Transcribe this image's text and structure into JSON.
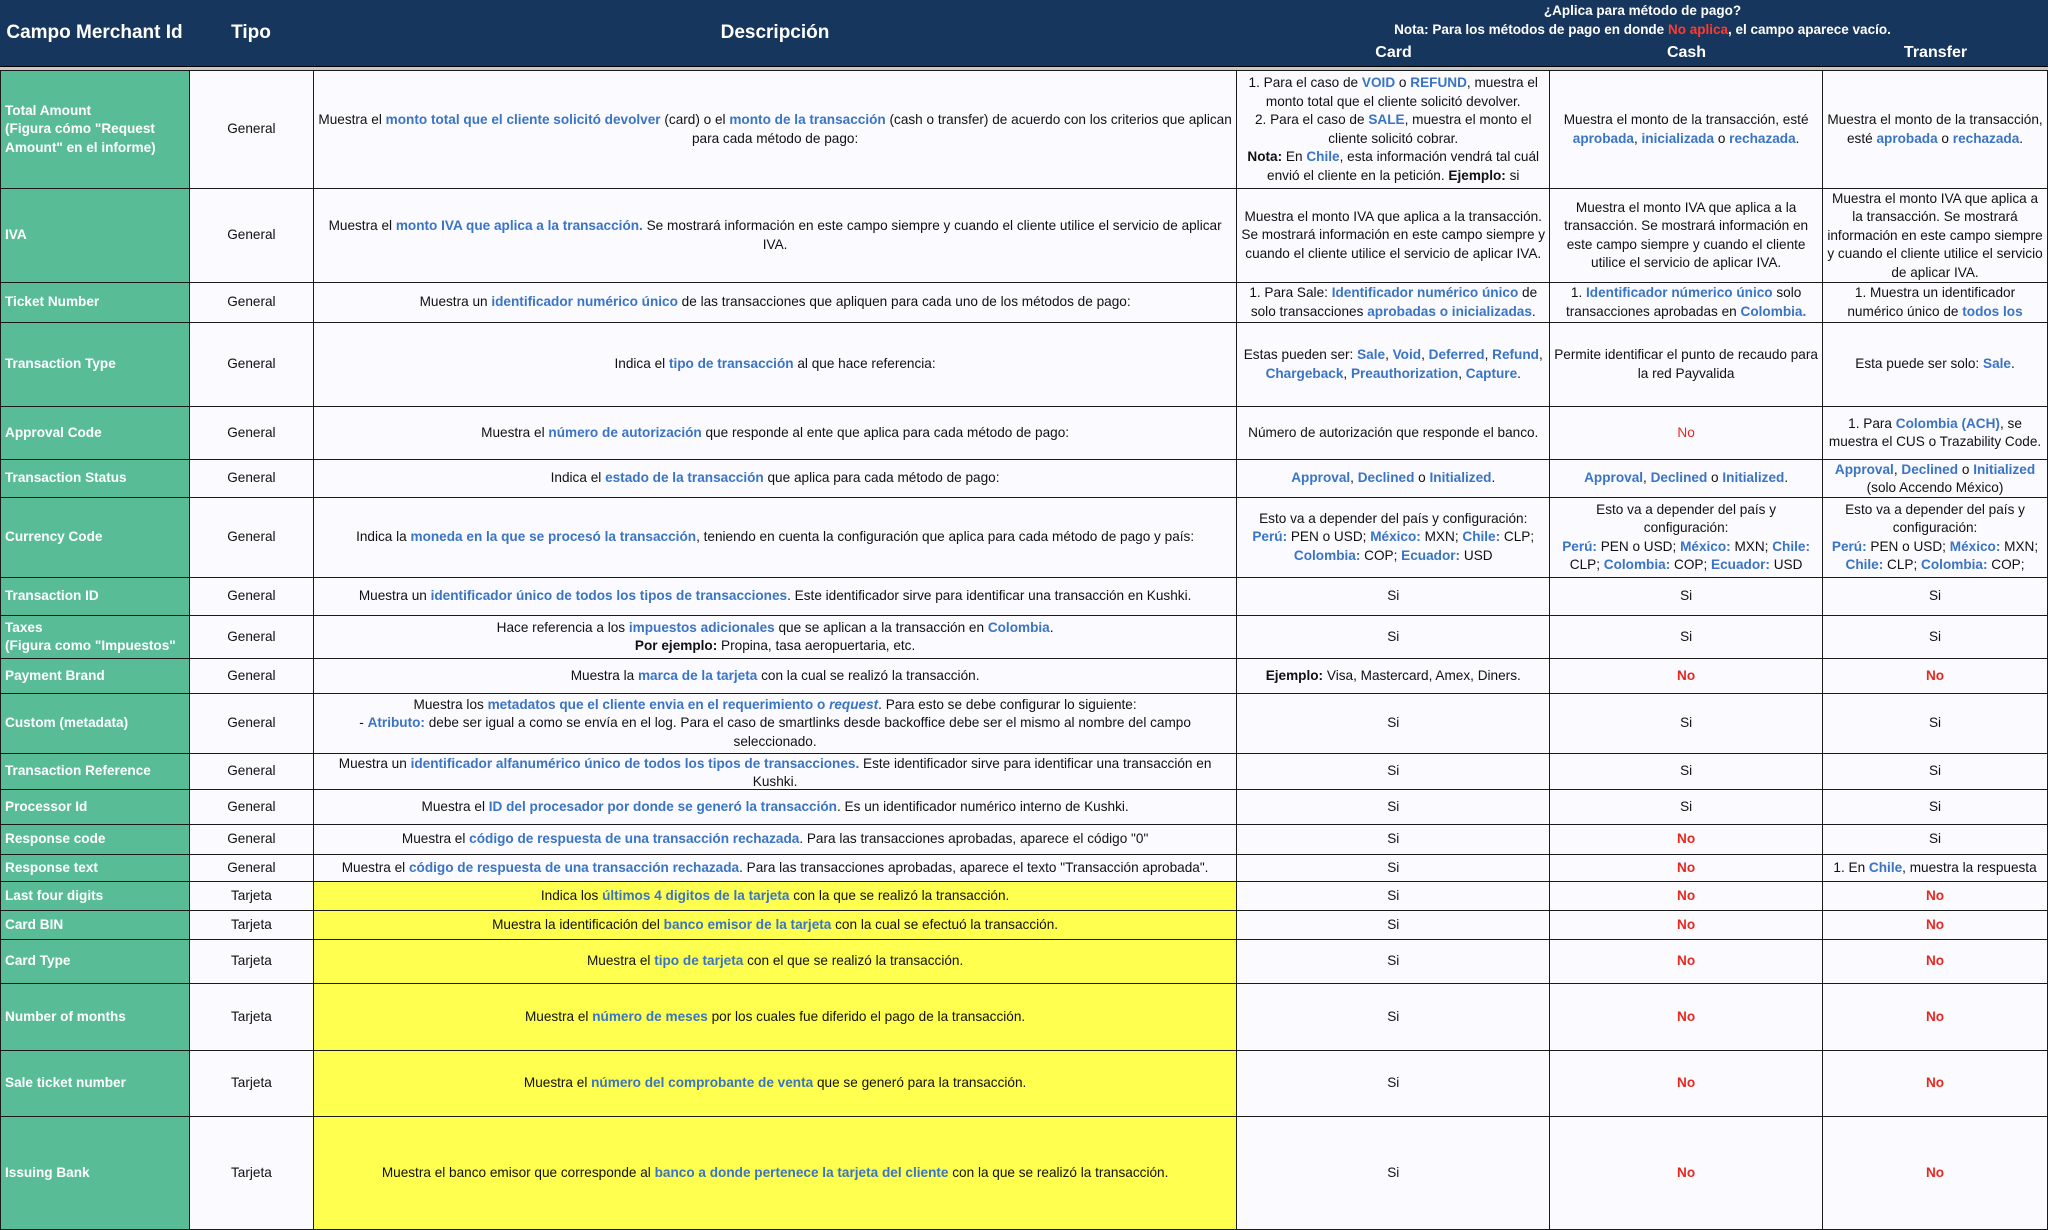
{
  "header": {
    "col_field": "Campo Merchant Id",
    "col_type": "Tipo",
    "col_desc": "Descripción",
    "applies_title": "¿Aplica para método de pago?",
    "note_pre": "Nota: Para los métodos de pago en donde ",
    "note_red": "No aplica",
    "note_post": ", el campo aparece vacío.",
    "card": "Card",
    "cash": "Cash",
    "transfer": "Transfer"
  },
  "colors": {
    "header_bg": "#17365d",
    "field_bg": "#58bd96",
    "highlight_bg": "#ffff4f",
    "link_blue": "#3a74c4",
    "no_red": "#e8281e"
  },
  "rows": [
    {
      "name": "Total Amount\n(Figura cómo \"Request Amount\" en el informe)",
      "type": "General",
      "desc": [
        [
          "Muestra el "
        ],
        [
          "monto total que el cliente solicitó devolver",
          "b"
        ],
        [
          " (card) o el "
        ],
        [
          "monto de la transacción",
          "b"
        ],
        [
          " (cash o transfer) de acuerdo con los criterios que aplican para cada método de pago:"
        ]
      ],
      "card": [
        [
          "1. Para el caso de "
        ],
        [
          "VOID",
          "b"
        ],
        [
          " o "
        ],
        [
          "REFUND",
          "b"
        ],
        [
          ", muestra el monto total que el cliente solicitó devolver.\n2. Para el caso de "
        ],
        [
          "SALE",
          "b"
        ],
        [
          ", muestra el monto el cliente solicitó cobrar.\n"
        ],
        [
          "Nota:",
          "k"
        ],
        [
          " En "
        ],
        [
          "Chile",
          "b"
        ],
        [
          ", esta información vendrá tal cuál envió el cliente en la petición. "
        ],
        [
          "Ejemplo:",
          "k"
        ],
        [
          " si"
        ]
      ],
      "cash": [
        [
          "Muestra el monto de la transacción, esté "
        ],
        [
          "aprobada",
          "b"
        ],
        [
          ", "
        ],
        [
          "inicializada",
          "b"
        ],
        [
          " o "
        ],
        [
          "rechazada",
          "b"
        ],
        [
          "."
        ]
      ],
      "transfer": [
        [
          "Muestra el monto de la transacción, esté "
        ],
        [
          "aprobada",
          "b"
        ],
        [
          " o "
        ],
        [
          "rechazada",
          "b"
        ],
        [
          "."
        ]
      ]
    },
    {
      "name": "IVA",
      "type": "General",
      "desc": [
        [
          "Muestra el "
        ],
        [
          "monto IVA que aplica a la transacción.",
          "b"
        ],
        [
          " Se mostrará información en este campo siempre y cuando el cliente utilice el servicio de aplicar IVA."
        ]
      ],
      "card": [
        [
          "Muestra el monto IVA que aplica a la transacción. Se mostrará información en este campo siempre y cuando el cliente utilice el servicio de aplicar IVA."
        ]
      ],
      "cash": [
        [
          "Muestra el monto IVA que aplica a la transacción. Se mostrará información en este campo siempre y cuando el cliente utilice el servicio de aplicar IVA."
        ]
      ],
      "transfer": [
        [
          "Muestra el monto IVA que aplica a la transacción. Se mostrará información en este campo siempre y cuando el cliente utilice el servicio de aplicar IVA."
        ]
      ]
    },
    {
      "name": "Ticket Number",
      "type": "General",
      "desc": [
        [
          "Muestra un "
        ],
        [
          "identificador numérico único",
          "b"
        ],
        [
          " de las transacciones que apliquen para cada uno de los métodos de pago:"
        ]
      ],
      "card": [
        [
          "1. Para Sale: "
        ],
        [
          "Identificador numérico único",
          "b"
        ],
        [
          " de solo transacciones "
        ],
        [
          "aprobadas o inicializadas",
          "b"
        ],
        [
          "."
        ]
      ],
      "cash": [
        [
          "1.  "
        ],
        [
          "Identificador númerico único",
          "b"
        ],
        [
          " solo transacciones aprobadas en "
        ],
        [
          "Colombia.",
          "b"
        ]
      ],
      "transfer": [
        [
          "1. Muestra un identificador numérico único de "
        ],
        [
          "todos los",
          "b"
        ]
      ]
    },
    {
      "name": "Transaction Type",
      "type": "General",
      "desc": [
        [
          "Indica el "
        ],
        [
          "tipo de transacción",
          "b"
        ],
        [
          " al que hace referencia:"
        ]
      ],
      "card": [
        [
          "Estas pueden ser: "
        ],
        [
          "Sale",
          "b"
        ],
        [
          ", "
        ],
        [
          "Void",
          "b"
        ],
        [
          ", "
        ],
        [
          "Deferred",
          "b"
        ],
        [
          ", "
        ],
        [
          "Refund",
          "b"
        ],
        [
          ", "
        ],
        [
          "Chargeback",
          "b"
        ],
        [
          ", "
        ],
        [
          "Preauthorization",
          "b"
        ],
        [
          ", "
        ],
        [
          "Capture",
          "b"
        ],
        [
          "."
        ]
      ],
      "cash": [
        [
          "Permite identificar el punto de recaudo para la red Payvalida"
        ]
      ],
      "transfer": [
        [
          "Esta puede ser solo: "
        ],
        [
          "Sale",
          "b"
        ],
        [
          "."
        ]
      ]
    },
    {
      "name": "Approval Code",
      "type": "General",
      "desc": [
        [
          "Muestra el "
        ],
        [
          "número de autorización",
          "b"
        ],
        [
          " que responde al ente que aplica para cada método de pago:"
        ]
      ],
      "card": [
        [
          "Número de autorización que responde el banco."
        ]
      ],
      "cash": [
        [
          "No",
          "r"
        ]
      ],
      "transfer": [
        [
          "1. Para "
        ],
        [
          "Colombia (ACH)",
          "b"
        ],
        [
          ", se muestra el CUS o Trazability Code."
        ]
      ]
    },
    {
      "name": "Transaction Status",
      "type": "General",
      "desc": [
        [
          "Indica el "
        ],
        [
          "estado de la transacción",
          "b"
        ],
        [
          " que aplica para cada método de pago:"
        ]
      ],
      "card": [
        [
          "Approval",
          "b"
        ],
        [
          ", "
        ],
        [
          "Declined",
          "b"
        ],
        [
          " o "
        ],
        [
          "Initialized",
          "b"
        ],
        [
          "."
        ]
      ],
      "cash": [
        [
          "Approval",
          "b"
        ],
        [
          ", "
        ],
        [
          "Declined",
          "b"
        ],
        [
          " o "
        ],
        [
          "Initialized",
          "b"
        ],
        [
          "."
        ]
      ],
      "transfer": [
        [
          "Approval",
          "b"
        ],
        [
          ", "
        ],
        [
          "Declined",
          "b"
        ],
        [
          " o "
        ],
        [
          "Initialized",
          "b"
        ],
        [
          "\n(solo Accendo México)"
        ]
      ]
    },
    {
      "name": "Currency Code",
      "type": "General",
      "desc": [
        [
          "Indica la "
        ],
        [
          "moneda en la que se procesó la transacción",
          "b"
        ],
        [
          ", teniendo en cuenta la configuración que aplica para cada método de pago y país:"
        ]
      ],
      "card": [
        [
          "Esto va a depender del país y configuración:\n"
        ],
        [
          "Perú:",
          "b"
        ],
        [
          " PEN o USD; "
        ],
        [
          "México:",
          "b"
        ],
        [
          " MXN; "
        ],
        [
          "Chile:",
          "b"
        ],
        [
          " CLP; "
        ],
        [
          "Colombia:",
          "b"
        ],
        [
          " COP; "
        ],
        [
          "Ecuador:",
          "b"
        ],
        [
          " USD"
        ]
      ],
      "cash": [
        [
          "Esto va a depender del país y configuración:\n"
        ],
        [
          "Perú:",
          "b"
        ],
        [
          " PEN o USD; "
        ],
        [
          "México:",
          "b"
        ],
        [
          " MXN; "
        ],
        [
          "Chile:",
          "b"
        ],
        [
          " CLP; "
        ],
        [
          "Colombia:",
          "b"
        ],
        [
          " COP; "
        ],
        [
          "Ecuador:",
          "b"
        ],
        [
          " USD"
        ]
      ],
      "transfer": [
        [
          "Esto va a depender del país y configuración:\n"
        ],
        [
          "Perú:",
          "b"
        ],
        [
          " PEN o USD; "
        ],
        [
          "México:",
          "b"
        ],
        [
          " MXN; "
        ],
        [
          "Chile:",
          "b"
        ],
        [
          " CLP; "
        ],
        [
          "Colombia:",
          "b"
        ],
        [
          " COP;"
        ]
      ]
    },
    {
      "name": "Transaction ID",
      "type": "General",
      "desc": [
        [
          "Muestra un "
        ],
        [
          "identificador único de todos los tipos de transacciones",
          "b"
        ],
        [
          ". Este identificador sirve para identificar una transacción en Kushki."
        ]
      ],
      "card": [
        [
          "Si"
        ]
      ],
      "cash": [
        [
          "Si"
        ]
      ],
      "transfer": [
        [
          "Si"
        ]
      ]
    },
    {
      "name": "Taxes\n(Figura como \"Impuestos\"",
      "type": "General",
      "desc": [
        [
          "Hace referencia a los "
        ],
        [
          "impuestos adicionales",
          "b"
        ],
        [
          " que se aplican a la transacción en "
        ],
        [
          "Colombia",
          "b"
        ],
        [
          ".\n"
        ],
        [
          "Por ejemplo:",
          "k"
        ],
        [
          " Propina, tasa aeropuertaria, etc."
        ]
      ],
      "card": [
        [
          "Si"
        ]
      ],
      "cash": [
        [
          "Si"
        ]
      ],
      "transfer": [
        [
          "Si"
        ]
      ]
    },
    {
      "name": "Payment Brand",
      "type": "General",
      "desc": [
        [
          "Muestra la "
        ],
        [
          "marca de la tarjeta",
          "b"
        ],
        [
          " con la cual se realizó la transacción."
        ]
      ],
      "card": [
        [
          "Ejemplo:",
          "k"
        ],
        [
          " Visa, Mastercard, Amex, Diners."
        ]
      ],
      "cash": [
        [
          "No",
          "rb"
        ]
      ],
      "transfer": [
        [
          "No",
          "rb"
        ]
      ]
    },
    {
      "name": "Custom (metadata)",
      "type": "General",
      "desc": [
        [
          "Muestra los "
        ],
        [
          "metadatos que el cliente envia en el requerimiento o ",
          "b"
        ],
        [
          "request",
          "bi"
        ],
        [
          ". Para esto se debe configurar lo siguiente:\n- "
        ],
        [
          "Atributo:",
          "b"
        ],
        [
          " debe ser igual a como se envía en el log. Para el caso de smartlinks desde backoffice debe ser el mismo al nombre del campo seleccionado."
        ]
      ],
      "card": [
        [
          "Si"
        ]
      ],
      "cash": [
        [
          "Si"
        ]
      ],
      "transfer": [
        [
          "Si"
        ]
      ]
    },
    {
      "name": "Transaction Reference",
      "type": "General",
      "desc": [
        [
          "Muestra un "
        ],
        [
          "identificador alfanumérico único de todos los tipos de transacciones.",
          "b"
        ],
        [
          " Este identificador sirve para identificar una transacción en Kushki."
        ]
      ],
      "card": [
        [
          "Si"
        ]
      ],
      "cash": [
        [
          "Si"
        ]
      ],
      "transfer": [
        [
          "Si"
        ]
      ]
    },
    {
      "name": "Processor Id",
      "type": "General",
      "desc": [
        [
          "Muestra el "
        ],
        [
          "ID del procesador por donde se generó la transacción",
          "b"
        ],
        [
          ". Es un identificador numérico interno de Kushki."
        ]
      ],
      "card": [
        [
          "Si"
        ]
      ],
      "cash": [
        [
          "Si"
        ]
      ],
      "transfer": [
        [
          "Si"
        ]
      ]
    },
    {
      "name": "Response code",
      "type": "General",
      "desc": [
        [
          "Muestra el "
        ],
        [
          "código de respuesta de una transacción rechazada",
          "b"
        ],
        [
          ". Para las transacciones aprobadas, aparece el código \"0\""
        ]
      ],
      "card": [
        [
          "Si"
        ]
      ],
      "cash": [
        [
          "No",
          "rb"
        ]
      ],
      "transfer": [
        [
          "Si"
        ]
      ]
    },
    {
      "name": "Response text",
      "type": "General",
      "desc": [
        [
          "Muestra el "
        ],
        [
          "código de respuesta de una transacción rechazada",
          "b"
        ],
        [
          ". Para las transacciones aprobadas, aparece el texto \"Transacción aprobada\"."
        ]
      ],
      "card": [
        [
          "Si"
        ]
      ],
      "cash": [
        [
          "No",
          "rb"
        ]
      ],
      "transfer": [
        [
          "1. En "
        ],
        [
          "Chile",
          "b"
        ],
        [
          ", muestra la respuesta"
        ]
      ]
    },
    {
      "name": "Last four digits",
      "type": "Tarjeta",
      "desc": [
        [
          "Indica los "
        ],
        [
          "últimos 4 digitos de la tarjeta",
          "b"
        ],
        [
          " con la que se realizó la transacción."
        ]
      ],
      "card": [
        [
          "Si"
        ]
      ],
      "cash": [
        [
          "No",
          "rb"
        ]
      ],
      "transfer": [
        [
          "No",
          "rb"
        ]
      ]
    },
    {
      "name": "Card BIN",
      "type": "Tarjeta",
      "desc": [
        [
          "Muestra la identificación del "
        ],
        [
          "banco emisor de la tarjeta",
          "b"
        ],
        [
          " con la cual se efectuó la transacción."
        ]
      ],
      "card": [
        [
          "Si"
        ]
      ],
      "cash": [
        [
          "No",
          "rb"
        ]
      ],
      "transfer": [
        [
          "No",
          "rb"
        ]
      ]
    },
    {
      "name": "Card Type",
      "type": "Tarjeta",
      "desc": [
        [
          "Muestra el "
        ],
        [
          "tipo de tarjeta",
          "b"
        ],
        [
          " con el que se realizó la transacción."
        ]
      ],
      "card": [
        [
          "Si"
        ]
      ],
      "cash": [
        [
          "No",
          "rb"
        ]
      ],
      "transfer": [
        [
          "No",
          "rb"
        ]
      ]
    },
    {
      "name": "Number of months",
      "type": "Tarjeta",
      "desc": [
        [
          "Muestra el "
        ],
        [
          "número de meses",
          "b"
        ],
        [
          " por los cuales fue diferido el pago de la transacción."
        ]
      ],
      "card": [
        [
          "Si"
        ]
      ],
      "cash": [
        [
          "No",
          "rb"
        ]
      ],
      "transfer": [
        [
          "No",
          "rb"
        ]
      ]
    },
    {
      "name": "Sale ticket number",
      "type": "Tarjeta",
      "desc": [
        [
          "Muestra el "
        ],
        [
          "número del comprobante de venta",
          "b"
        ],
        [
          " que se generó para la transacción."
        ]
      ],
      "card": [
        [
          "Si"
        ]
      ],
      "cash": [
        [
          "No",
          "rb"
        ]
      ],
      "transfer": [
        [
          "No",
          "rb"
        ]
      ]
    },
    {
      "name": "Issuing Bank",
      "type": "Tarjeta",
      "desc": [
        [
          "Muestra el banco emisor que corresponde al "
        ],
        [
          "banco a donde pertenece la tarjeta del cliente",
          "b"
        ],
        [
          " con la que se realizó la transacción."
        ]
      ],
      "card": [
        [
          "Si"
        ]
      ],
      "cash": [
        [
          "No",
          "rb"
        ]
      ],
      "transfer": [
        [
          "No",
          "rb"
        ]
      ]
    }
  ]
}
